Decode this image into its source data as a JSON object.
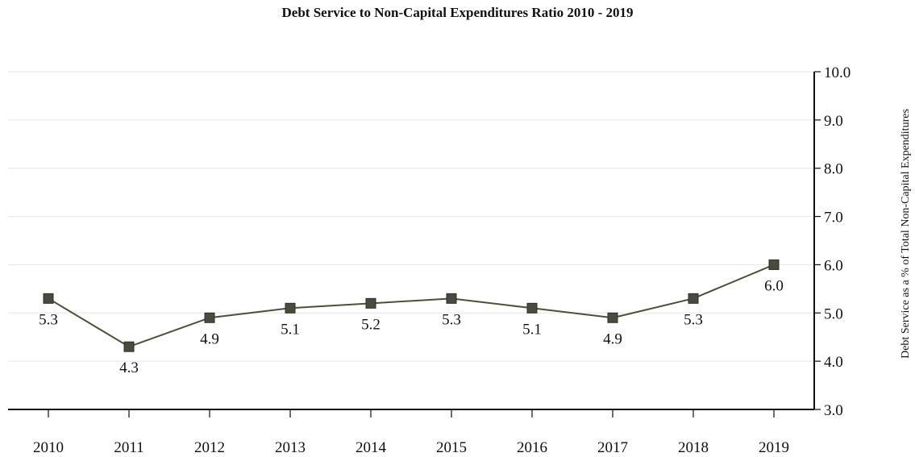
{
  "chart_data": {
    "type": "line",
    "title": "Debt Service to Non-Capital Expenditures Ratio 2010 - 2019",
    "xlabel": "",
    "ylabel": "Debt Service as a % of Total Non-Capital Expenditures",
    "categories": [
      "2010",
      "2011",
      "2012",
      "2013",
      "2014",
      "2015",
      "2016",
      "2017",
      "2018",
      "2019"
    ],
    "series": [
      {
        "values": [
          5.3,
          4.3,
          4.9,
          5.1,
          5.2,
          5.3,
          5.1,
          4.9,
          5.3,
          6.0
        ],
        "labels": [
          "5.3",
          "4.3",
          "4.9",
          "5.1",
          "5.2",
          "5.3",
          "5.1",
          "4.9",
          "5.3",
          "6.0"
        ]
      }
    ],
    "ylim": [
      3.0,
      10.0
    ],
    "yticks": [
      "3.0",
      "4.0",
      "5.0",
      "6.0",
      "7.0",
      "8.0",
      "9.0",
      "10.0"
    ],
    "y_axis_side": "right",
    "grid": true,
    "legend": "none",
    "colors": {
      "line": "#4f4f3a",
      "marker": "#4a4a40",
      "grid": "#e6e6e6",
      "axis": "#111111"
    }
  }
}
